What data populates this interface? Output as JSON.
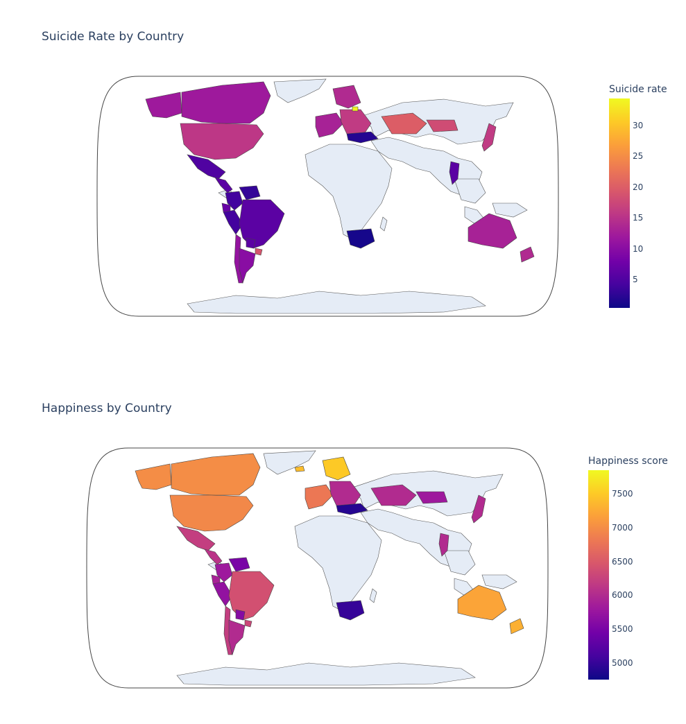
{
  "colors": {
    "scale": [
      "#0d0887",
      "#46039f",
      "#7201a8",
      "#9c179e",
      "#bd3786",
      "#d8576b",
      "#ed7953",
      "#fb9f3a",
      "#fdca26",
      "#f0f921"
    ],
    "land_no_data": "#e5ecf6",
    "frame": "#444444"
  },
  "maps": [
    {
      "title": "Suicide Rate by Country",
      "colorbar": {
        "title": "Suicide rate",
        "range": [
          0.4,
          34.4
        ],
        "ticks": [
          {
            "value": 30,
            "label": "30"
          },
          {
            "value": 25,
            "label": "25"
          },
          {
            "value": 20,
            "label": "20"
          },
          {
            "value": 15,
            "label": "15"
          },
          {
            "value": 10,
            "label": "10"
          },
          {
            "value": 5,
            "label": "5"
          }
        ]
      },
      "regions": [
        {
          "name": "Canada",
          "value": 12
        },
        {
          "name": "Alaska",
          "value": 12
        },
        {
          "name": "United States",
          "value": 15.5
        },
        {
          "name": "Mexico",
          "value": 5
        },
        {
          "name": "Central America",
          "value": 6
        },
        {
          "name": "Colombia",
          "value": 4
        },
        {
          "name": "Venezuela",
          "value": 3
        },
        {
          "name": "Ecuador",
          "value": 7
        },
        {
          "name": "Peru",
          "value": 4
        },
        {
          "name": "Brazil",
          "value": 6
        },
        {
          "name": "Chile",
          "value": 11
        },
        {
          "name": "Argentina",
          "value": 10
        },
        {
          "name": "Uruguay",
          "value": 19
        },
        {
          "name": "Paraguay",
          "value": 6
        },
        {
          "name": "Western Europe",
          "value": 13
        },
        {
          "name": "Scandinavia",
          "value": 14
        },
        {
          "name": "Eastern Europe",
          "value": 16
        },
        {
          "name": "Lithuania",
          "value": 34
        },
        {
          "name": "Turkey",
          "value": 2
        },
        {
          "name": "Kazakhstan",
          "value": 20
        },
        {
          "name": "Mongolia",
          "value": 18
        },
        {
          "name": "Japan",
          "value": 16
        },
        {
          "name": "Thailand",
          "value": 6
        },
        {
          "name": "South Africa",
          "value": 1
        },
        {
          "name": "Australia",
          "value": 13
        },
        {
          "name": "New Zealand",
          "value": 14
        }
      ]
    },
    {
      "title": "Happiness by Country",
      "colorbar": {
        "title": "Happiness score",
        "range": [
          4750,
          7850
        ],
        "ticks": [
          {
            "value": 7500,
            "label": "7500"
          },
          {
            "value": 7000,
            "label": "7000"
          },
          {
            "value": 6500,
            "label": "6500"
          },
          {
            "value": 6000,
            "label": "6000"
          },
          {
            "value": 5500,
            "label": "5500"
          },
          {
            "value": 5000,
            "label": "5000"
          }
        ]
      },
      "regions": [
        {
          "name": "Canada",
          "value": 7000
        },
        {
          "name": "Alaska",
          "value": 7000
        },
        {
          "name": "United States",
          "value": 6950
        },
        {
          "name": "Mexico",
          "value": 6200
        },
        {
          "name": "Central America",
          "value": 6100
        },
        {
          "name": "Colombia",
          "value": 5800
        },
        {
          "name": "Venezuela",
          "value": 5500
        },
        {
          "name": "Ecuador",
          "value": 5900
        },
        {
          "name": "Peru",
          "value": 5700
        },
        {
          "name": "Brazil",
          "value": 6400
        },
        {
          "name": "Chile",
          "value": 6200
        },
        {
          "name": "Argentina",
          "value": 6000
        },
        {
          "name": "Uruguay",
          "value": 6300
        },
        {
          "name": "Paraguay",
          "value": 5600
        },
        {
          "name": "Western Europe",
          "value": 6800
        },
        {
          "name": "Scandinavia",
          "value": 7500
        },
        {
          "name": "Eastern Europe",
          "value": 6000
        },
        {
          "name": "Iceland",
          "value": 7400
        },
        {
          "name": "Turkey",
          "value": 4900
        },
        {
          "name": "Kazakhstan",
          "value": 6000
        },
        {
          "name": "Mongolia",
          "value": 5800
        },
        {
          "name": "Japan",
          "value": 6000
        },
        {
          "name": "Thailand",
          "value": 6000
        },
        {
          "name": "South Africa",
          "value": 5000
        },
        {
          "name": "Australia",
          "value": 7200
        },
        {
          "name": "New Zealand",
          "value": 7300
        }
      ]
    }
  ]
}
